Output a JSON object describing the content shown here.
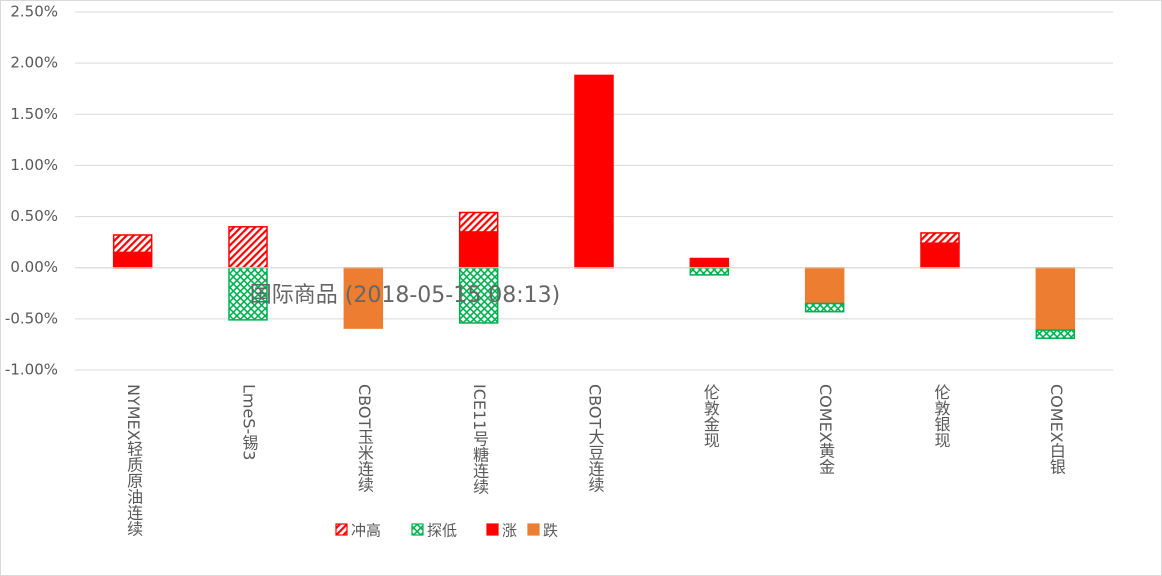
{
  "chart_data": {
    "type": "stacked-bar",
    "annotation": "国际商品 (2018-05-15 08:13)",
    "categories": [
      "NYMEX轻质原油连续",
      "LmeS-锡3",
      "CBOT玉米连续",
      "ICE11号糖连续",
      "CBOT大豆连续",
      "伦敦金现",
      "COMEX黄金",
      "伦敦银现",
      "COMEX白银"
    ],
    "series": [
      {
        "name": "冲高",
        "color": "#ff0000",
        "pattern": "hatch",
        "values": [
          0.17,
          0.4,
          0,
          0.19,
          0,
          0,
          0,
          0.1,
          0
        ]
      },
      {
        "name": "探低",
        "color": "#00b050",
        "pattern": "hatch",
        "values": [
          0,
          -0.51,
          0,
          -0.54,
          0,
          -0.07,
          -0.08,
          0,
          -0.08
        ]
      },
      {
        "name": "涨",
        "color": "#ff0000",
        "pattern": "solid",
        "values": [
          0.15,
          0,
          0,
          0.35,
          1.88,
          0.09,
          0,
          0.24,
          0
        ]
      },
      {
        "name": "跌",
        "color": "#ed7d31",
        "pattern": "solid",
        "values": [
          0,
          0,
          -0.59,
          0,
          0,
          0,
          -0.35,
          0,
          -0.61
        ]
      }
    ],
    "stack_order": [
      "涨",
      "冲高",
      "跌",
      "探低"
    ],
    "ylim": [
      -1.0,
      2.5
    ],
    "yticks": [
      {
        "value": -1.0,
        "label": "-1.00%"
      },
      {
        "value": -0.5,
        "label": "-0.50%"
      },
      {
        "value": 0,
        "label": "0.00%"
      },
      {
        "value": 0.5,
        "label": "0.50%"
      },
      {
        "value": 1.0,
        "label": "1.00%"
      },
      {
        "value": 1.5,
        "label": "1.50%"
      },
      {
        "value": 2.0,
        "label": "2.00%"
      },
      {
        "value": 2.5,
        "label": "2.50%"
      }
    ],
    "grid": true,
    "legend": "bottom"
  }
}
